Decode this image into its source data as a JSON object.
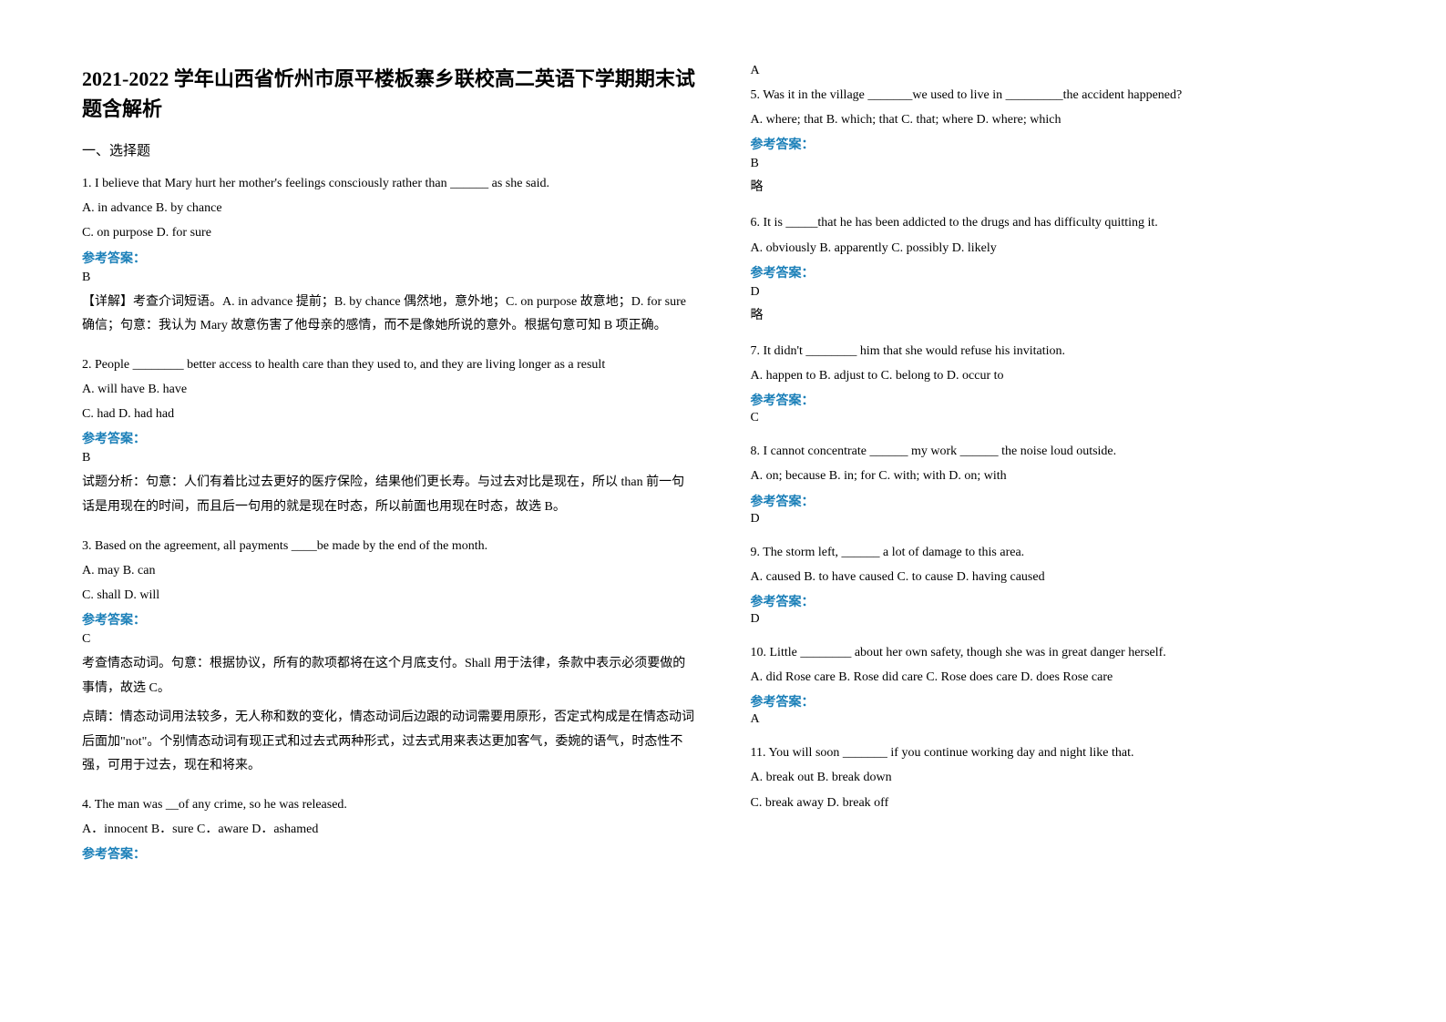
{
  "title": "2021-2022 学年山西省忻州市原平楼板寨乡联校高二英语下学期期末试题含解析",
  "section1_heading": "一、选择题",
  "answer_label": "参考答案：",
  "skip": "略",
  "left": {
    "q1": {
      "text": "1. I believe that Mary hurt her mother's feelings consciously rather than ______ as she said.",
      "optA": "A. in advance   B. by chance",
      "optB": "C. on purpose   D. for sure",
      "answer": "B",
      "explanation": "【详解】考查介词短语。A. in advance 提前；B. by chance 偶然地，意外地；C. on purpose 故意地；D. for sure 确信；句意：我认为 Mary 故意伤害了他母亲的感情，而不是像她所说的意外。根据句意可知 B 项正确。"
    },
    "q2": {
      "text": "2. People ________ better access to health care than they used to, and they are living longer as a result",
      "optA": "A. will have   B. have",
      "optB": "C. had   D. had had",
      "answer": "B",
      "explanation": "试题分析：句意：人们有着比过去更好的医疗保险，结果他们更长寿。与过去对比是现在，所以 than 前一句话是用现在的时间，而且后一句用的就是现在时态，所以前面也用现在时态，故选 B。"
    },
    "q3": {
      "text": "3. Based on the agreement, all payments ____be made by the end of the month.",
      "optA": "A. may   B. can",
      "optB": "C. shall   D. will",
      "answer": "C",
      "explanation1": "考查情态动词。句意：根据协议，所有的款项都将在这个月底支付。Shall 用于法律，条款中表示必须要做的事情，故选 C。",
      "explanation2": "点睛：情态动词用法较多，无人称和数的变化，情态动词后边跟的动词需要用原形，否定式构成是在情态动词后面加\"not\"。个别情态动词有现正式和过去式两种形式，过去式用来表达更加客气，委婉的语气，时态性不强，可用于过去，现在和将来。"
    },
    "q4": {
      "text": "4. The man was __of any crime, so he was released.",
      "options": "        A．innocent   B．sure        C．aware      D．ashamed"
    }
  },
  "right": {
    "q4_answer": "A",
    "q5": {
      "text": "5. Was it in the village _______we used to live in _________the accident happened?",
      "options": "    A. where; that     B. which; that     C. that; where    D. where; which",
      "answer": "B"
    },
    "q6": {
      "text": "6. It is _____that he has been addicted to the drugs and has difficulty quitting it.",
      "options": "A. obviously      B. apparently      C. possibly       D. likely",
      "answer": "D"
    },
    "q7": {
      "text": "7. It didn't ________ him that she would refuse his invitation.",
      "options": "  A. happen to    B. adjust to       C. belong to    D. occur to",
      "answer": "C"
    },
    "q8": {
      "text": "8.  I cannot concentrate ______ my work ______ the noise loud outside.",
      "options": "  A. on; because         B. in; for                  C. with; with             D. on; with",
      "answer": "D"
    },
    "q9": {
      "text": "9. The storm left, ______ a lot of damage to this area.",
      "options": "    A. caused                    B. to have caused   C. to cause          D. having caused",
      "answer": "D"
    },
    "q10": {
      "text": "10. Little ________ about her own safety, though she was in great danger herself.",
      "options": "   A. did Rose care   B. Rose did care   C. Rose does care   D. does Rose care",
      "answer": "A"
    },
    "q11": {
      "text": "11. You will soon _______ if you continue working day and night like that.",
      "optA": "    A. break out                 B. break down",
      "optB": "    C. break away               D. break off"
    }
  }
}
